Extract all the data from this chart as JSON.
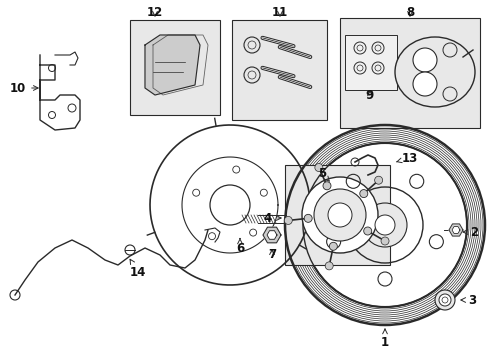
{
  "bg_color": "#ffffff",
  "fig_width": 4.89,
  "fig_height": 3.6,
  "dpi": 100,
  "line_color": "#2a2a2a",
  "fill_light": "#e8e8e8",
  "fill_mid": "#cccccc"
}
